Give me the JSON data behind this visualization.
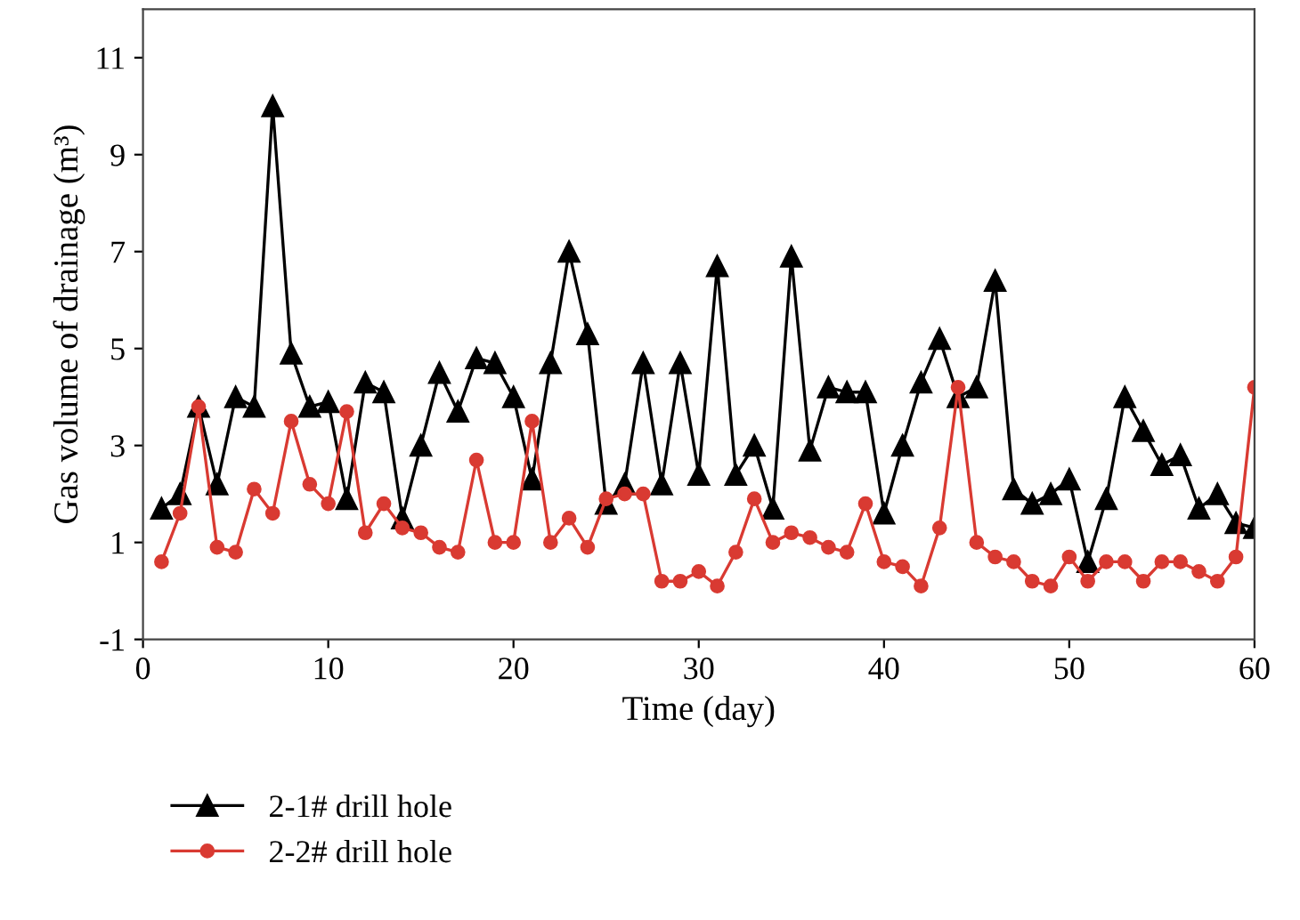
{
  "chart_data": {
    "type": "line",
    "xlabel": "Time (day)",
    "ylabel": "Gas volume of drainage (m³)",
    "x": [
      1,
      2,
      3,
      4,
      5,
      6,
      7,
      8,
      9,
      10,
      11,
      12,
      13,
      14,
      15,
      16,
      17,
      18,
      19,
      20,
      21,
      22,
      23,
      24,
      25,
      26,
      27,
      28,
      29,
      30,
      31,
      32,
      33,
      34,
      35,
      36,
      37,
      38,
      39,
      40,
      41,
      42,
      43,
      44,
      45,
      46,
      47,
      48,
      49,
      50,
      51,
      52,
      53,
      54,
      55,
      56,
      57,
      58,
      59,
      60
    ],
    "series": [
      {
        "name": "2-1# drill hole",
        "color": "#000000",
        "marker": "triangle",
        "values": [
          1.7,
          2.0,
          3.8,
          2.2,
          4.0,
          3.8,
          10.0,
          4.9,
          3.8,
          3.9,
          1.9,
          4.3,
          4.1,
          1.5,
          3.0,
          4.5,
          3.7,
          4.8,
          4.7,
          4.0,
          2.3,
          4.7,
          7.0,
          5.3,
          1.8,
          2.2,
          4.7,
          2.2,
          4.7,
          2.4,
          6.7,
          2.4,
          3.0,
          1.7,
          6.9,
          2.9,
          4.2,
          4.1,
          4.1,
          1.6,
          3.0,
          4.3,
          5.2,
          4.0,
          4.2,
          6.4,
          2.1,
          1.8,
          2.0,
          2.3,
          0.6,
          1.9,
          4.0,
          3.3,
          2.6,
          2.8,
          1.7,
          2.0,
          1.4,
          1.3
        ]
      },
      {
        "name": "2-2# drill hole",
        "color": "#d93a32",
        "marker": "circle",
        "values": [
          0.6,
          1.6,
          3.8,
          0.9,
          0.8,
          2.1,
          1.6,
          3.5,
          2.2,
          1.8,
          3.7,
          1.2,
          1.8,
          1.3,
          1.2,
          0.9,
          0.8,
          2.7,
          1.0,
          1.0,
          3.5,
          1.0,
          1.5,
          0.9,
          1.9,
          2.0,
          2.0,
          0.2,
          0.2,
          0.4,
          0.1,
          0.8,
          1.9,
          1.0,
          1.2,
          1.1,
          0.9,
          0.8,
          1.8,
          0.6,
          0.5,
          0.1,
          1.3,
          4.2,
          1.0,
          0.7,
          0.6,
          0.2,
          0.1,
          0.7,
          0.2,
          0.6,
          0.6,
          0.2,
          0.6,
          0.6,
          0.4,
          0.2,
          0.7,
          4.2
        ]
      }
    ],
    "xlim": [
      0,
      60
    ],
    "xticks": [
      0,
      10,
      20,
      30,
      40,
      50,
      60
    ],
    "ylim": [
      -1,
      12
    ],
    "yticks": [
      -1,
      1,
      3,
      5,
      7,
      9,
      11
    ],
    "grid": false,
    "legend": "bottom left",
    "line_style": "solid"
  }
}
